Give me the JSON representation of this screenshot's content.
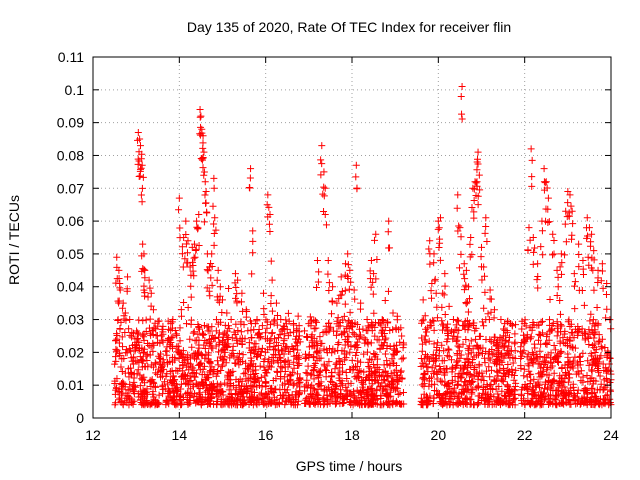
{
  "chart_data": {
    "type": "scatter",
    "title": "Day 135 of 2020, Rate Of TEC Index for receiver flin",
    "xlabel": "GPS time / hours",
    "ylabel": "ROTI / TECUs",
    "xlim": [
      12,
      24
    ],
    "ylim": [
      0,
      0.11
    ],
    "grid": true,
    "marker": "+",
    "color": "#ff0000",
    "xticks": [
      12,
      14,
      16,
      18,
      20,
      22,
      24
    ],
    "xtick_labels": [
      "12",
      "14",
      "16",
      "18",
      "20",
      "22",
      "24"
    ],
    "yticks": [
      0,
      0.01,
      0.02,
      0.03,
      0.04,
      0.05,
      0.06,
      0.07,
      0.08,
      0.09,
      0.1,
      0.11
    ],
    "ytick_labels": [
      "0",
      "0.01",
      "0.02",
      "0.03",
      "0.04",
      "0.05",
      "0.06",
      "0.07",
      "0.08",
      "0.09",
      "0.1",
      "0.11"
    ],
    "data_coverage": [
      [
        12.5,
        16.8
      ],
      [
        16.9,
        19.2
      ],
      [
        19.6,
        21.8
      ],
      [
        21.9,
        24.0
      ]
    ],
    "background_range": [
      0.004,
      0.03
    ],
    "series": [
      {
        "name": "ROTI",
        "points": [
          [
            12.55,
            0.049
          ],
          [
            12.6,
            0.045
          ],
          [
            12.62,
            0.041
          ],
          [
            12.7,
            0.035
          ],
          [
            12.75,
            0.032
          ],
          [
            12.8,
            0.043
          ],
          [
            12.85,
            0.03
          ],
          [
            12.9,
            0.026
          ],
          [
            13.0,
            0.022
          ],
          [
            13.05,
            0.087
          ],
          [
            13.08,
            0.085
          ],
          [
            13.1,
            0.083
          ],
          [
            13.12,
            0.079
          ],
          [
            13.14,
            0.077
          ],
          [
            13.15,
            0.053
          ],
          [
            13.18,
            0.05
          ],
          [
            13.2,
            0.045
          ],
          [
            13.3,
            0.042
          ],
          [
            13.35,
            0.038
          ],
          [
            13.4,
            0.033
          ],
          [
            13.5,
            0.028
          ],
          [
            13.6,
            0.027
          ],
          [
            13.75,
            0.027
          ],
          [
            13.85,
            0.03
          ],
          [
            14.0,
            0.067
          ],
          [
            14.05,
            0.031
          ],
          [
            14.1,
            0.055
          ],
          [
            14.15,
            0.06
          ],
          [
            14.2,
            0.054
          ],
          [
            14.25,
            0.046
          ],
          [
            14.3,
            0.052
          ],
          [
            14.35,
            0.053
          ],
          [
            14.4,
            0.06
          ],
          [
            14.45,
            0.062
          ],
          [
            14.48,
            0.094
          ],
          [
            14.5,
            0.092
          ],
          [
            14.52,
            0.088
          ],
          [
            14.55,
            0.086
          ],
          [
            14.57,
            0.081
          ],
          [
            14.6,
            0.072
          ],
          [
            14.62,
            0.069
          ],
          [
            14.65,
            0.05
          ],
          [
            14.7,
            0.046
          ],
          [
            14.75,
            0.05
          ],
          [
            14.8,
            0.073
          ],
          [
            14.82,
            0.061
          ],
          [
            14.9,
            0.045
          ],
          [
            14.95,
            0.04
          ],
          [
            15.0,
            0.036
          ],
          [
            15.1,
            0.032
          ],
          [
            15.2,
            0.03
          ],
          [
            15.3,
            0.044
          ],
          [
            15.35,
            0.042
          ],
          [
            15.45,
            0.038
          ],
          [
            15.55,
            0.033
          ],
          [
            15.65,
            0.076
          ],
          [
            15.7,
            0.057
          ],
          [
            15.8,
            0.03
          ],
          [
            15.95,
            0.038
          ],
          [
            16.05,
            0.068
          ],
          [
            16.1,
            0.062
          ],
          [
            16.15,
            0.042
          ],
          [
            16.25,
            0.035
          ],
          [
            16.35,
            0.03
          ],
          [
            16.5,
            0.027
          ],
          [
            16.7,
            0.022
          ],
          [
            17.1,
            0.022
          ],
          [
            17.2,
            0.048
          ],
          [
            17.3,
            0.083
          ],
          [
            17.35,
            0.075
          ],
          [
            17.38,
            0.07
          ],
          [
            17.45,
            0.048
          ],
          [
            17.55,
            0.04
          ],
          [
            17.65,
            0.035
          ],
          [
            17.75,
            0.043
          ],
          [
            17.85,
            0.047
          ],
          [
            17.9,
            0.05
          ],
          [
            17.95,
            0.045
          ],
          [
            18.05,
            0.039
          ],
          [
            18.1,
            0.077
          ],
          [
            18.2,
            0.035
          ],
          [
            18.35,
            0.03
          ],
          [
            18.45,
            0.048
          ],
          [
            18.5,
            0.044
          ],
          [
            18.55,
            0.056
          ],
          [
            18.7,
            0.03
          ],
          [
            18.85,
            0.06
          ],
          [
            18.95,
            0.032
          ],
          [
            19.05,
            0.031
          ],
          [
            19.15,
            0.025
          ],
          [
            19.7,
            0.025
          ],
          [
            19.8,
            0.054
          ],
          [
            19.85,
            0.041
          ],
          [
            19.9,
            0.05
          ],
          [
            19.95,
            0.038
          ],
          [
            20.0,
            0.06
          ],
          [
            20.05,
            0.061
          ],
          [
            20.1,
            0.038
          ],
          [
            20.15,
            0.044
          ],
          [
            20.25,
            0.034
          ],
          [
            20.35,
            0.03
          ],
          [
            20.45,
            0.068
          ],
          [
            20.5,
            0.058
          ],
          [
            20.55,
            0.101
          ],
          [
            20.6,
            0.047
          ],
          [
            20.65,
            0.045
          ],
          [
            20.7,
            0.04
          ],
          [
            20.75,
            0.055
          ],
          [
            20.8,
            0.07
          ],
          [
            20.85,
            0.072
          ],
          [
            20.9,
            0.078
          ],
          [
            20.92,
            0.081
          ],
          [
            20.95,
            0.074
          ],
          [
            21.0,
            0.052
          ],
          [
            21.05,
            0.046
          ],
          [
            21.1,
            0.061
          ],
          [
            21.2,
            0.039
          ],
          [
            21.3,
            0.033
          ],
          [
            21.45,
            0.03
          ],
          [
            21.6,
            0.026
          ],
          [
            22.0,
            0.024
          ],
          [
            22.1,
            0.058
          ],
          [
            22.15,
            0.082
          ],
          [
            22.2,
            0.055
          ],
          [
            22.3,
            0.047
          ],
          [
            22.4,
            0.06
          ],
          [
            22.45,
            0.076
          ],
          [
            22.5,
            0.072
          ],
          [
            22.55,
            0.067
          ],
          [
            22.65,
            0.056
          ],
          [
            22.75,
            0.045
          ],
          [
            22.85,
            0.05
          ],
          [
            22.95,
            0.063
          ],
          [
            23.0,
            0.069
          ],
          [
            23.05,
            0.068
          ],
          [
            23.1,
            0.063
          ],
          [
            23.15,
            0.044
          ],
          [
            23.25,
            0.053
          ],
          [
            23.35,
            0.048
          ],
          [
            23.45,
            0.061
          ],
          [
            23.5,
            0.058
          ],
          [
            23.55,
            0.056
          ],
          [
            23.6,
            0.051
          ],
          [
            23.7,
            0.045
          ],
          [
            23.8,
            0.047
          ],
          [
            23.9,
            0.041
          ]
        ]
      }
    ]
  }
}
